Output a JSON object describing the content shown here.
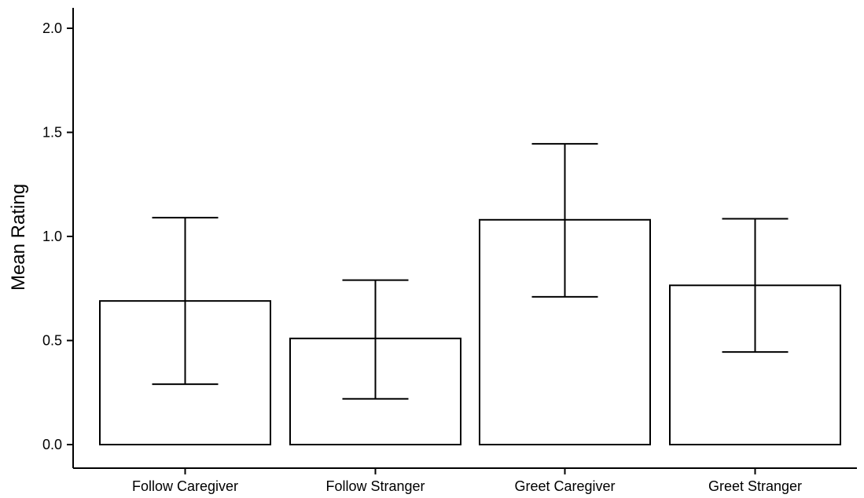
{
  "chart_data": {
    "type": "bar",
    "title": "",
    "xlabel": "",
    "ylabel": "Mean Rating",
    "ylim": [
      -0.12,
      2.1
    ],
    "yticks": [
      "0.0",
      "0.5",
      "1.0",
      "1.5",
      "2.0"
    ],
    "categories": [
      "Follow Caregiver",
      "Follow Stranger",
      "Greet Caregiver",
      "Greet Stranger"
    ],
    "values": [
      0.69,
      0.51,
      1.08,
      0.765
    ],
    "error_low": [
      0.29,
      0.22,
      0.71,
      0.445
    ],
    "error_high": [
      1.09,
      0.79,
      1.445,
      1.085
    ],
    "bar_fill": "#ffffff",
    "bar_stroke": "#000000",
    "grid": false,
    "legend": "none"
  }
}
